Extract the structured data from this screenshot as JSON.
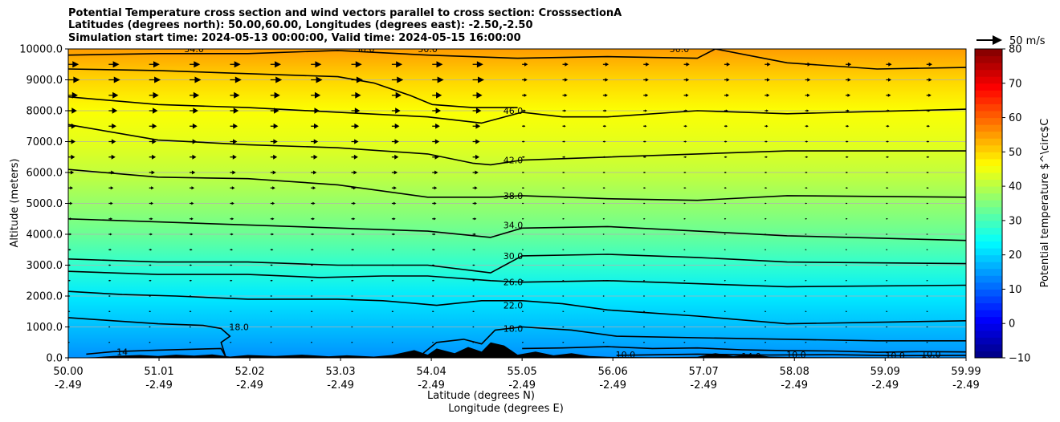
{
  "title_lines": [
    "Potential Temperature cross section and wind vectors parallel to cross section: CrosssectionA",
    "Latitudes (degrees north): 50.00,60.00, Longitudes (degrees east): -2.50,-2.50",
    "Simulation start time: 2024-05-13 00:00:00, Valid time: 2024-05-15 16:00:00"
  ],
  "chart_data": {
    "type": "heatmap",
    "xlabel": "Latitude (degrees N)",
    "xlabel2": "Longitude (degrees E)",
    "ylabel": "Altitude (meters)",
    "ylim": [
      0,
      10000
    ],
    "xlim": [
      50.0,
      59.99
    ],
    "x_ticks": [
      {
        "lat": "50.00",
        "lon": "-2.49",
        "v": 50.0
      },
      {
        "lat": "51.01",
        "lon": "-2.49",
        "v": 51.01
      },
      {
        "lat": "52.02",
        "lon": "-2.49",
        "v": 52.02
      },
      {
        "lat": "53.03",
        "lon": "-2.49",
        "v": 53.03
      },
      {
        "lat": "54.04",
        "lon": "-2.49",
        "v": 54.04
      },
      {
        "lat": "55.05",
        "lon": "-2.49",
        "v": 55.05
      },
      {
        "lat": "56.06",
        "lon": "-2.49",
        "v": 56.06
      },
      {
        "lat": "57.07",
        "lon": "-2.49",
        "v": 57.07
      },
      {
        "lat": "58.08",
        "lon": "-2.49",
        "v": 58.08
      },
      {
        "lat": "59.09",
        "lon": "-2.49",
        "v": 59.09
      },
      {
        "lat": "59.99",
        "lon": "-2.49",
        "v": 59.99
      }
    ],
    "y_ticks": [
      {
        "label": "0.0",
        "v": 0
      },
      {
        "label": "1000.0",
        "v": 1000
      },
      {
        "label": "2000.0",
        "v": 2000
      },
      {
        "label": "3000.0",
        "v": 3000
      },
      {
        "label": "4000.0",
        "v": 4000
      },
      {
        "label": "5000.0",
        "v": 5000
      },
      {
        "label": "6000.0",
        "v": 6000
      },
      {
        "label": "7000.0",
        "v": 7000
      },
      {
        "label": "8000.0",
        "v": 8000
      },
      {
        "label": "9000.0",
        "v": 9000
      },
      {
        "label": "10000.0",
        "v": 10000
      }
    ],
    "grid": "horizontal",
    "colorbar": {
      "label": "Potential temperature $^\\circ$C",
      "range": [
        -10,
        80
      ],
      "ticks": [
        {
          "label": "−10",
          "v": -10
        },
        {
          "label": "0",
          "v": 0
        },
        {
          "label": "10",
          "v": 10
        },
        {
          "label": "20",
          "v": 20
        },
        {
          "label": "30",
          "v": 30
        },
        {
          "label": "40",
          "v": 40
        },
        {
          "label": "50",
          "v": 50
        },
        {
          "label": "60",
          "v": 60
        },
        {
          "label": "70",
          "v": 70
        },
        {
          "label": "80",
          "v": 80
        }
      ],
      "colormap": "jet"
    },
    "background_field": [
      {
        "alt": 0,
        "temp": 14
      },
      {
        "alt": 1000,
        "temp": 18
      },
      {
        "alt": 2000,
        "temp": 22
      },
      {
        "alt": 3000,
        "temp": 28
      },
      {
        "alt": 4000,
        "temp": 33
      },
      {
        "alt": 5000,
        "temp": 37
      },
      {
        "alt": 6000,
        "temp": 41
      },
      {
        "alt": 7000,
        "temp": 44
      },
      {
        "alt": 8000,
        "temp": 46
      },
      {
        "alt": 9000,
        "temp": 50
      },
      {
        "alt": 10000,
        "temp": 55
      }
    ],
    "contours": [
      {
        "level": 10,
        "label": "10.0",
        "points": [
          [
            56.1,
            80
          ],
          [
            57.0,
            120
          ],
          [
            57.8,
            90
          ],
          [
            58.5,
            100
          ],
          [
            59.2,
            70
          ],
          [
            59.99,
            80
          ]
        ]
      },
      {
        "level": 14,
        "label": "14",
        "points": [
          [
            50.2,
            120
          ],
          [
            50.5,
            200
          ],
          [
            51.0,
            250
          ],
          [
            51.7,
            300
          ],
          [
            51.75,
            50
          ]
        ]
      },
      {
        "level": 14,
        "label": "14.0",
        "points": [
          [
            55.05,
            300
          ],
          [
            55.5,
            320
          ],
          [
            56.0,
            360
          ],
          [
            56.5,
            300
          ],
          [
            57.0,
            320
          ],
          [
            57.5,
            260
          ],
          [
            58.0,
            230
          ],
          [
            58.5,
            220
          ],
          [
            59.0,
            180
          ],
          [
            59.5,
            200
          ],
          [
            59.99,
            190
          ]
        ]
      },
      {
        "level": 18,
        "label": "18.0",
        "points": [
          [
            50.0,
            1300
          ],
          [
            50.5,
            1200
          ],
          [
            51.0,
            1100
          ],
          [
            51.5,
            1050
          ],
          [
            51.7,
            950
          ],
          [
            51.8,
            700
          ],
          [
            51.7,
            500
          ],
          [
            51.75,
            50
          ]
        ]
      },
      {
        "level": 18,
        "label": "",
        "points": [
          [
            53.95,
            150
          ],
          [
            54.1,
            500
          ],
          [
            54.4,
            600
          ],
          [
            54.6,
            450
          ],
          [
            54.75,
            900
          ],
          [
            55.05,
            1000
          ],
          [
            55.6,
            900
          ],
          [
            56.1,
            700
          ],
          [
            57.0,
            650
          ],
          [
            58.0,
            600
          ],
          [
            59.0,
            550
          ],
          [
            59.99,
            550
          ]
        ]
      },
      {
        "level": 22,
        "label": "22.0",
        "points": [
          [
            50.0,
            2150
          ],
          [
            50.6,
            2050
          ],
          [
            51.2,
            2000
          ],
          [
            52.0,
            1900
          ],
          [
            53.0,
            1900
          ],
          [
            53.5,
            1850
          ],
          [
            53.9,
            1750
          ],
          [
            54.1,
            1700
          ],
          [
            54.6,
            1850
          ],
          [
            55.05,
            1850
          ],
          [
            55.5,
            1750
          ],
          [
            56.0,
            1550
          ],
          [
            56.5,
            1450
          ],
          [
            57.0,
            1350
          ],
          [
            58.0,
            1100
          ],
          [
            59.0,
            1150
          ],
          [
            59.99,
            1200
          ]
        ]
      },
      {
        "level": 26,
        "label": "26.0",
        "points": [
          [
            50.0,
            2800
          ],
          [
            51.0,
            2700
          ],
          [
            52.0,
            2700
          ],
          [
            52.8,
            2600
          ],
          [
            53.5,
            2650
          ],
          [
            54.0,
            2650
          ],
          [
            54.7,
            2500
          ],
          [
            55.05,
            2450
          ],
          [
            56.0,
            2500
          ],
          [
            57.0,
            2400
          ],
          [
            58.0,
            2300
          ],
          [
            59.99,
            2350
          ]
        ]
      },
      {
        "level": 30,
        "label": "30.0",
        "points": [
          [
            50.0,
            3200
          ],
          [
            51.0,
            3100
          ],
          [
            52.0,
            3100
          ],
          [
            53.0,
            3000
          ],
          [
            54.0,
            3000
          ],
          [
            54.7,
            2750
          ],
          [
            55.05,
            3300
          ],
          [
            56.0,
            3350
          ],
          [
            57.0,
            3250
          ],
          [
            58.0,
            3100
          ],
          [
            59.99,
            3050
          ]
        ]
      },
      {
        "level": 34,
        "label": "34.0",
        "points": [
          [
            50.0,
            4500
          ],
          [
            51.0,
            4400
          ],
          [
            52.0,
            4300
          ],
          [
            53.0,
            4200
          ],
          [
            54.0,
            4100
          ],
          [
            54.7,
            3900
          ],
          [
            55.05,
            4200
          ],
          [
            56.0,
            4250
          ],
          [
            57.0,
            4100
          ],
          [
            58.0,
            3950
          ],
          [
            59.99,
            3800
          ]
        ]
      },
      {
        "level": 38,
        "label": "38.0",
        "points": [
          [
            50.0,
            6100
          ],
          [
            51.0,
            5850
          ],
          [
            52.0,
            5800
          ],
          [
            53.0,
            5600
          ],
          [
            54.0,
            5200
          ],
          [
            54.7,
            5200
          ],
          [
            55.05,
            5250
          ],
          [
            56.0,
            5150
          ],
          [
            57.0,
            5100
          ],
          [
            58.0,
            5250
          ],
          [
            59.99,
            5200
          ]
        ]
      },
      {
        "level": 42,
        "label": "42.0",
        "points": [
          [
            50.0,
            7550
          ],
          [
            51.0,
            7050
          ],
          [
            52.0,
            6900
          ],
          [
            53.0,
            6800
          ],
          [
            54.0,
            6600
          ],
          [
            54.5,
            6300
          ],
          [
            54.7,
            6250
          ],
          [
            55.05,
            6400
          ],
          [
            56.0,
            6500
          ],
          [
            57.0,
            6600
          ],
          [
            58.0,
            6700
          ],
          [
            59.99,
            6700
          ]
        ]
      },
      {
        "level": 46,
        "label": "46.0",
        "points": [
          [
            50.0,
            8450
          ],
          [
            51.0,
            8200
          ],
          [
            52.0,
            8100
          ],
          [
            53.0,
            7950
          ],
          [
            54.0,
            7800
          ],
          [
            54.6,
            7600
          ],
          [
            55.05,
            7950
          ],
          [
            55.5,
            7800
          ],
          [
            56.0,
            7800
          ],
          [
            57.0,
            8000
          ],
          [
            58.0,
            7900
          ],
          [
            59.99,
            8050
          ]
        ]
      },
      {
        "level": 50,
        "label": "50.0",
        "points": [
          [
            50.0,
            9350
          ],
          [
            51.0,
            9300
          ],
          [
            52.0,
            9200
          ],
          [
            53.0,
            9100
          ],
          [
            53.4,
            8900
          ],
          [
            53.8,
            8500
          ],
          [
            54.05,
            8200
          ],
          [
            54.5,
            8100
          ],
          [
            55.0,
            8100
          ]
        ]
      },
      {
        "level": 54,
        "label": "54.0",
        "points": [
          [
            50.0,
            9800
          ],
          [
            51.0,
            9850
          ],
          [
            52.0,
            9850
          ],
          [
            53.0,
            9950
          ],
          [
            54.0,
            9800
          ],
          [
            55.0,
            9700
          ],
          [
            56.0,
            9750
          ],
          [
            57.0,
            9700
          ],
          [
            57.2,
            10000
          ],
          [
            58.0,
            9550
          ],
          [
            59.0,
            9350
          ],
          [
            59.99,
            9400
          ]
        ]
      }
    ],
    "contour_label_positions": [
      {
        "label": "46.0",
        "lat": 54.95,
        "alt": 8000
      },
      {
        "label": "42.0",
        "lat": 54.95,
        "alt": 6400
      },
      {
        "label": "38.0",
        "lat": 54.95,
        "alt": 5250
      },
      {
        "label": "34.0",
        "lat": 54.95,
        "alt": 4300
      },
      {
        "label": "30.0",
        "lat": 54.95,
        "alt": 3300
      },
      {
        "label": "26.0",
        "lat": 54.95,
        "alt": 2450
      },
      {
        "label": "22.0",
        "lat": 54.95,
        "alt": 1700
      },
      {
        "label": "18.0",
        "lat": 54.95,
        "alt": 950
      },
      {
        "label": "18.0",
        "lat": 51.9,
        "alt": 1000
      },
      {
        "label": "14",
        "lat": 50.6,
        "alt": 200
      },
      {
        "label": "50.0",
        "lat": 53.3,
        "alt": 10000
      },
      {
        "label": "50.0",
        "lat": 54.0,
        "alt": 10000
      },
      {
        "label": "50.0",
        "lat": 56.8,
        "alt": 10000
      },
      {
        "label": "54.0",
        "lat": 51.4,
        "alt": 10000
      },
      {
        "label": "10.0",
        "lat": 56.2,
        "alt": 100
      },
      {
        "label": "14.0",
        "lat": 57.6,
        "alt": 50
      },
      {
        "label": "10.0",
        "lat": 58.1,
        "alt": 100
      },
      {
        "label": "10.0",
        "lat": 59.2,
        "alt": 80
      },
      {
        "label": "10.0",
        "lat": 59.6,
        "alt": 120
      }
    ],
    "wind_vectors": {
      "reference_label": "50 m/s",
      "reference_speed": 50,
      "columns": [
        50.0,
        50.45,
        50.9,
        51.35,
        51.8,
        52.25,
        52.7,
        53.15,
        53.6,
        54.05,
        54.5,
        55.05,
        55.5,
        55.95,
        56.4,
        56.85,
        57.3,
        57.75,
        58.2,
        58.65,
        59.1,
        59.55
      ],
      "rows": [
        9500,
        9000,
        8500,
        8000,
        7500,
        7000,
        6500,
        6000,
        5500,
        5000,
        4500,
        4000,
        3500,
        3000,
        2500,
        2000,
        1500,
        1000,
        500
      ],
      "row_speeds_west": [
        22,
        24,
        20,
        18,
        16,
        15,
        14,
        12,
        10,
        9,
        8,
        7,
        6,
        5,
        5,
        4,
        4,
        3,
        2
      ],
      "row_speeds_east": [
        12,
        11,
        10,
        8,
        7,
        6,
        6,
        5,
        5,
        4,
        4,
        3,
        3,
        2,
        2,
        2,
        1,
        1,
        1
      ]
    },
    "terrain": [
      [
        50.0,
        0
      ],
      [
        50.3,
        20
      ],
      [
        50.5,
        60
      ],
      [
        50.8,
        90
      ],
      [
        51.0,
        60
      ],
      [
        51.2,
        100
      ],
      [
        51.4,
        70
      ],
      [
        51.6,
        110
      ],
      [
        51.8,
        40
      ],
      [
        52.0,
        90
      ],
      [
        52.3,
        60
      ],
      [
        52.6,
        100
      ],
      [
        52.9,
        50
      ],
      [
        53.1,
        80
      ],
      [
        53.4,
        40
      ],
      [
        53.6,
        90
      ],
      [
        53.85,
        250
      ],
      [
        54.0,
        100
      ],
      [
        54.1,
        300
      ],
      [
        54.3,
        150
      ],
      [
        54.45,
        350
      ],
      [
        54.6,
        200
      ],
      [
        54.7,
        500
      ],
      [
        54.85,
        400
      ],
      [
        55.0,
        100
      ],
      [
        55.2,
        200
      ],
      [
        55.4,
        80
      ],
      [
        55.6,
        150
      ],
      [
        55.8,
        60
      ],
      [
        56.0,
        30
      ],
      [
        56.5,
        20
      ],
      [
        57.0,
        30
      ],
      [
        57.2,
        150
      ],
      [
        57.4,
        60
      ],
      [
        57.6,
        120
      ],
      [
        57.8,
        40
      ],
      [
        58.2,
        20
      ],
      [
        59.0,
        15
      ],
      [
        59.99,
        10
      ]
    ]
  }
}
